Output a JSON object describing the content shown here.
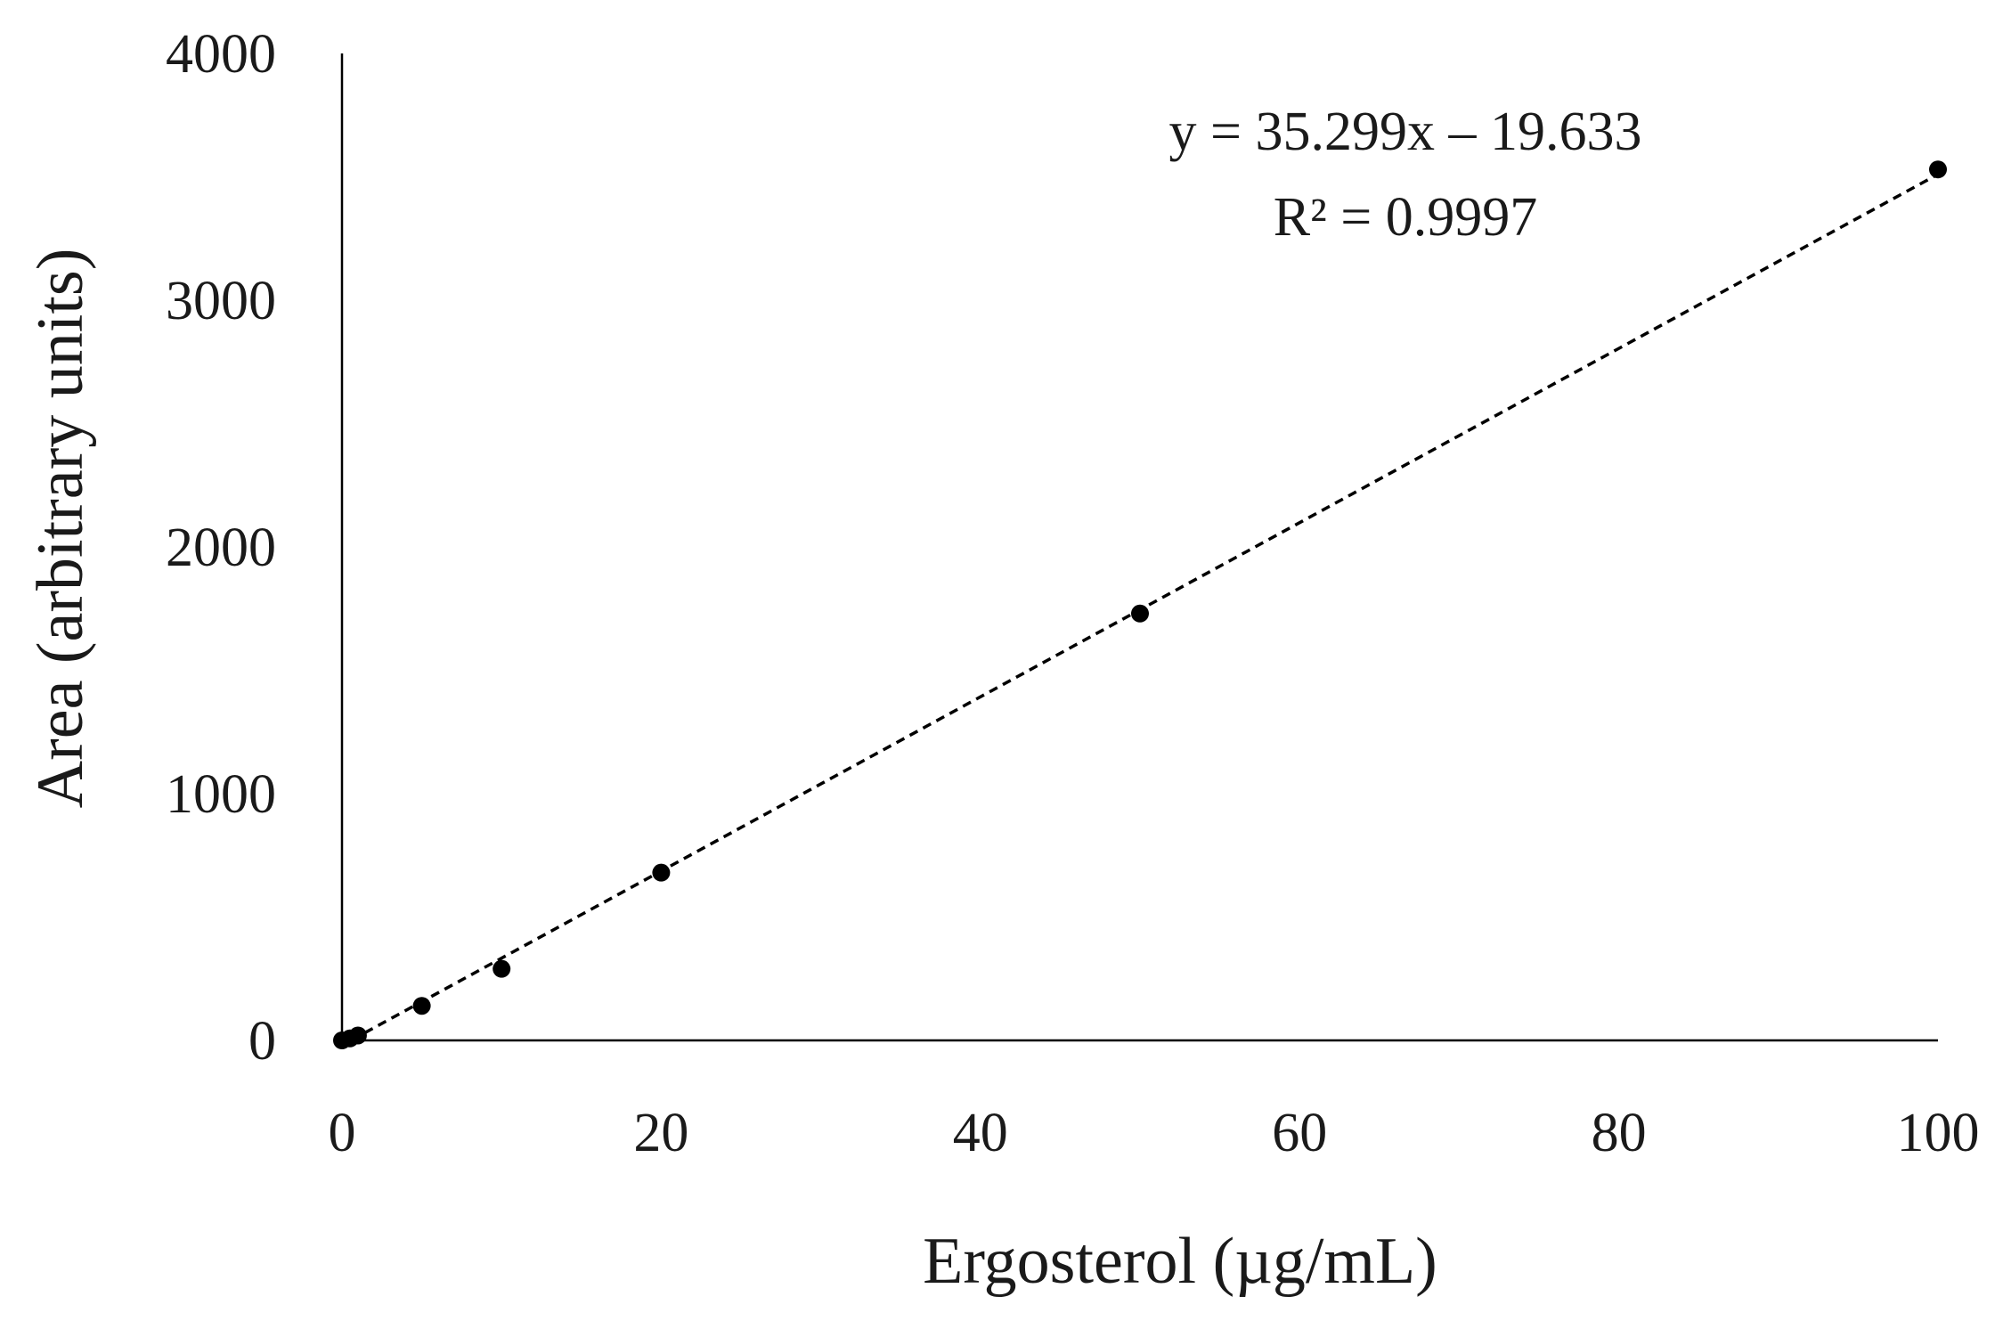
{
  "chart_data": {
    "type": "scatter",
    "title": "",
    "xlabel": "Ergosterol (µg/mL)",
    "ylabel": "Area (arbitrary units)",
    "xlim": [
      0,
      100
    ],
    "ylim": [
      0,
      4000
    ],
    "xticks": [
      "0",
      "20",
      "40",
      "60",
      "80",
      "100"
    ],
    "yticks": [
      "0",
      "1000",
      "2000",
      "3000",
      "4000"
    ],
    "grid": false,
    "legend": "none",
    "series": [
      {
        "points": [
          {
            "x": 0,
            "y": 0
          },
          {
            "x": 0.5,
            "y": 8
          },
          {
            "x": 1,
            "y": 20
          },
          {
            "x": 5,
            "y": 140
          },
          {
            "x": 10,
            "y": 290
          },
          {
            "x": 20,
            "y": 680
          },
          {
            "x": 50,
            "y": 1730
          },
          {
            "x": 100,
            "y": 3530
          }
        ],
        "color": "#000000"
      }
    ],
    "trendline": {
      "type": "linear",
      "slope": 35.299,
      "intercept": -19.633,
      "style": "dashed",
      "color": "#000000",
      "equation_label": "y = 35.299x – 19.633",
      "r2_label": "R² = 0.9997"
    }
  }
}
